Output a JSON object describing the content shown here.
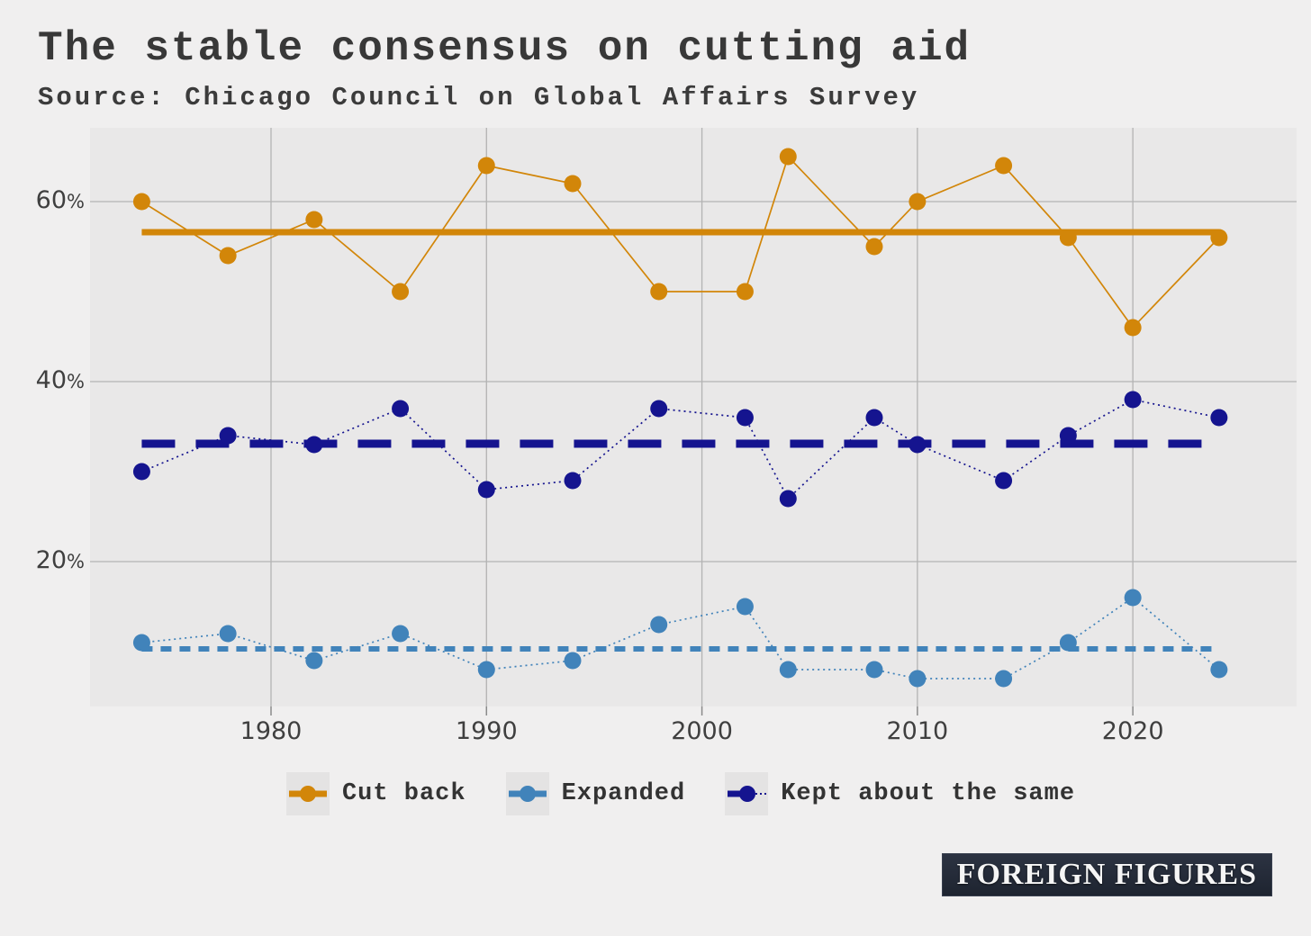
{
  "title": "The stable consensus on cutting aid",
  "subtitle": "Source: Chicago Council on Global Affairs Survey",
  "brand": {
    "logo_text": "FOREIGN FIGURES"
  },
  "colors": {
    "cut_back": "#D28609",
    "expanded": "#4183BA",
    "kept_same": "#15148F",
    "grid": "#b3b3b3",
    "tick": "#8a8a8a",
    "panel_bg": "#e9e8e8",
    "figure_bg": "#f0efef",
    "title_text": "#383838",
    "axis_text": "#3f3f3f",
    "legend_swatch_bg": "#e4e3e3",
    "logo_bg": "#232936",
    "logo_text": "#f5f5f5"
  },
  "chart_data": {
    "type": "line",
    "title": "The stable consensus on cutting aid",
    "source": "Chicago Council on Global Affairs Survey",
    "xlabel": "",
    "ylabel": "",
    "x": [
      1974,
      1978,
      1982,
      1986,
      1990,
      1994,
      1998,
      2002,
      2004,
      2008,
      2010,
      2014,
      2017,
      2020,
      2024
    ],
    "series": [
      {
        "name": "Cut back",
        "color_key": "cut_back",
        "line_style": "solid",
        "mean_style": "solid",
        "mean": 56.6,
        "values": [
          60,
          54,
          58,
          50,
          64,
          62,
          50,
          50,
          65,
          55,
          60,
          64,
          56,
          46,
          56
        ]
      },
      {
        "name": "Expanded",
        "color_key": "expanded",
        "line_style": "dotted",
        "mean_style": "dotted",
        "mean": 10.3,
        "values": [
          11,
          12,
          9,
          12,
          8,
          9,
          13,
          15,
          8,
          8,
          7,
          7,
          11,
          16,
          8
        ]
      },
      {
        "name": "Kept about the same",
        "color_key": "kept_same",
        "line_style": "dotted",
        "mean_style": "dashed",
        "mean": 33.1,
        "values": [
          30,
          34,
          33,
          37,
          28,
          29,
          37,
          36,
          27,
          36,
          33,
          29,
          34,
          38,
          36
        ]
      }
    ],
    "x_ticks": [
      1980,
      1990,
      2000,
      2010,
      2020
    ],
    "x_tick_labels": [
      "1980",
      "1990",
      "2000",
      "2010",
      "2020"
    ],
    "y_ticks": [
      20,
      40,
      60
    ],
    "y_tick_labels": [
      "20",
      "40",
      "60"
    ],
    "percent_suffix": "%",
    "xlim": [
      1971.6,
      2027.6
    ],
    "ylim": [
      3.9,
      68.2
    ],
    "grid": true,
    "legend_position": "bottom"
  }
}
